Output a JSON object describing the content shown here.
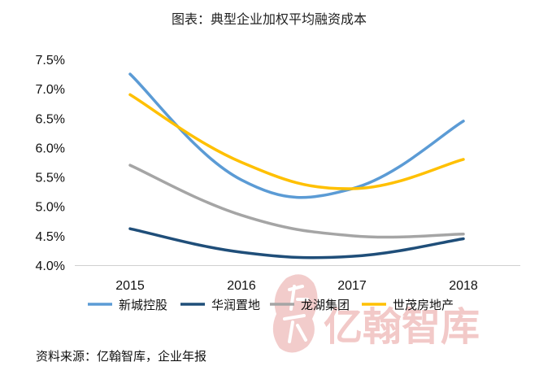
{
  "chart_data": {
    "type": "line",
    "title": "图表：典型企业加权平均融资成本",
    "categories": [
      "2015",
      "2016",
      "2017",
      "2018"
    ],
    "ylim": [
      4.0,
      7.5
    ],
    "yticks": [
      "4.0%",
      "4.5%",
      "5.0%",
      "5.5%",
      "6.0%",
      "6.5%",
      "7.0%",
      "7.5%"
    ],
    "ytick_values": [
      4.0,
      4.5,
      5.0,
      5.5,
      6.0,
      6.5,
      7.0,
      7.5
    ],
    "grid": false,
    "legend_position": "bottom",
    "series": [
      {
        "name": "新城控股",
        "color": "#5b9bd5",
        "values": [
          7.25,
          5.45,
          5.3,
          6.45
        ]
      },
      {
        "name": "华润置地",
        "color": "#1f4e79",
        "values": [
          4.62,
          4.22,
          4.15,
          4.45
        ]
      },
      {
        "name": "龙湖集团",
        "color": "#a5a5a5",
        "values": [
          5.7,
          4.85,
          4.5,
          4.53
        ]
      },
      {
        "name": "世茂房地产",
        "color": "#ffc000",
        "values": [
          6.9,
          5.75,
          5.3,
          5.8
        ]
      }
    ]
  },
  "source": "资料来源：亿翰智库，企业年报",
  "watermark": {
    "text": "亿翰智库",
    "seal": "亿翰"
  }
}
